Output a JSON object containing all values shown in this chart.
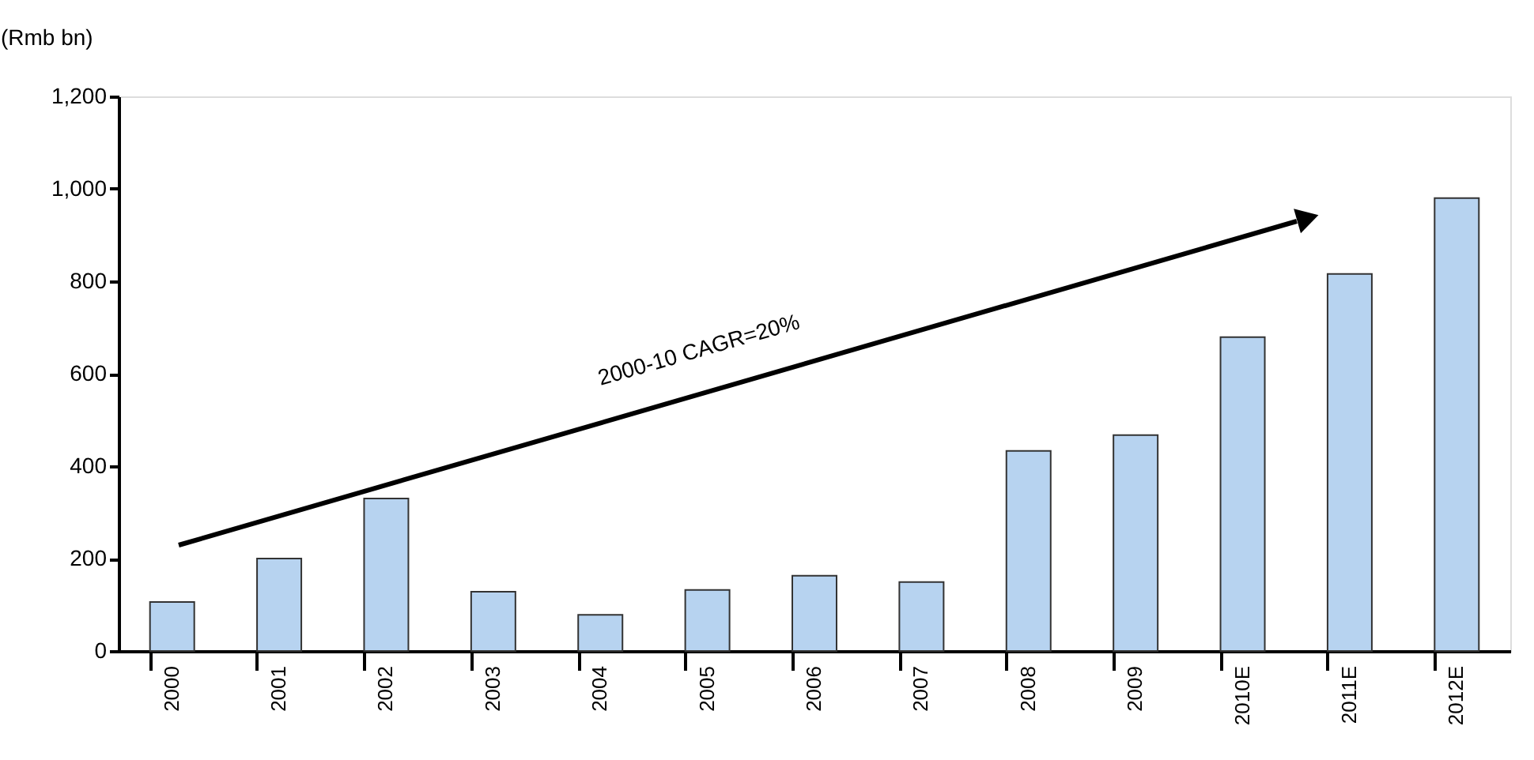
{
  "chart_data": {
    "type": "bar",
    "ylabel": "(Rmb bn)",
    "categories": [
      "2000",
      "2001",
      "2002",
      "2003",
      "2004",
      "2005",
      "2006",
      "2007",
      "2008",
      "2009",
      "2010E",
      "2011E",
      "2012E"
    ],
    "values": [
      106,
      200,
      330,
      128,
      78,
      132,
      163,
      149,
      433,
      467,
      679,
      816,
      980
    ],
    "color": "#b7d3f0",
    "ylim": [
      0,
      1200
    ],
    "yticks": [
      0,
      {
        "value": 200,
        "label": "200"
      },
      {
        "value": 400,
        "label": "400"
      },
      {
        "value": 600,
        "label": "600"
      },
      {
        "value": 800,
        "label": "800"
      },
      {
        "value": 1000,
        "label": "1,000"
      },
      {
        "value": 1200,
        "label": "1,200"
      }
    ],
    "grid": false,
    "annotations": [
      "2000-10 CAGR=20%"
    ]
  }
}
